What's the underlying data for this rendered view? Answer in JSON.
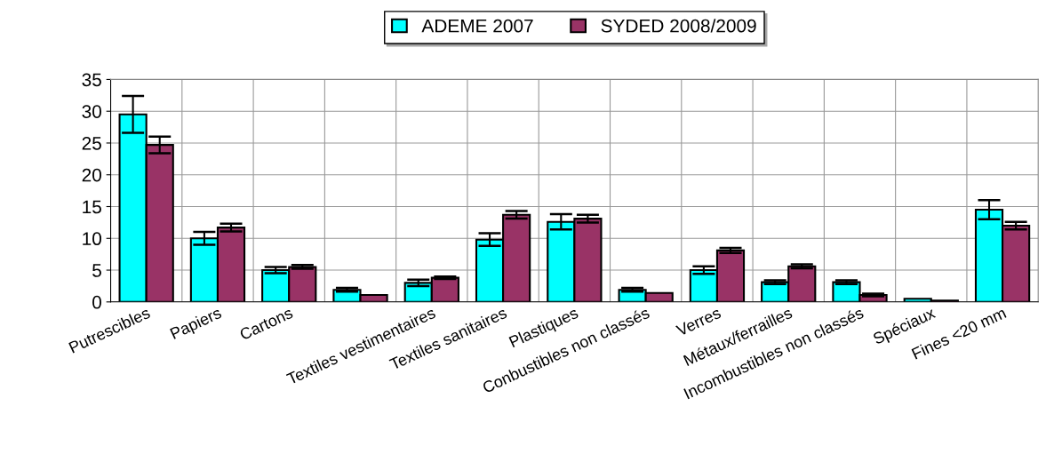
{
  "chart_data": {
    "type": "bar",
    "categories": [
      "Putrescibles",
      "Papiers",
      "Cartons",
      null,
      "Textiles vestimentaires",
      "Textiles sanitaires",
      "Plastiques",
      "Conbustibles non classés",
      "Verres",
      "Métaux/ferrailles",
      "Incombustibles non classés",
      "Spéciaux",
      "Fines <20 mm"
    ],
    "series": [
      {
        "name": "ADEME 2007",
        "color": "#00ffff",
        "values": [
          29.5,
          10,
          5,
          1.9,
          3,
          9.8,
          12.6,
          1.9,
          5,
          3.1,
          3.1,
          0.5,
          14.5
        ],
        "errors": [
          2.9,
          1,
          0.5,
          0.3,
          0.5,
          1,
          1.2,
          0.3,
          0.6,
          0.3,
          0.3,
          null,
          1.5
        ]
      },
      {
        "name": "SYDED 2008/2009",
        "color": "#993366",
        "values": [
          24.7,
          11.7,
          5.5,
          1.1,
          3.8,
          13.7,
          13.1,
          1.4,
          8.1,
          5.6,
          1.1,
          0.2,
          12
        ],
        "errors": [
          1.3,
          0.6,
          0.3,
          null,
          0.2,
          0.6,
          0.6,
          null,
          0.4,
          0.3,
          0.2,
          null,
          0.6
        ]
      }
    ],
    "ylim": [
      0,
      35
    ],
    "yticks": [
      0,
      5,
      10,
      15,
      20,
      25,
      30,
      35
    ],
    "grid": true,
    "legend": "top"
  }
}
